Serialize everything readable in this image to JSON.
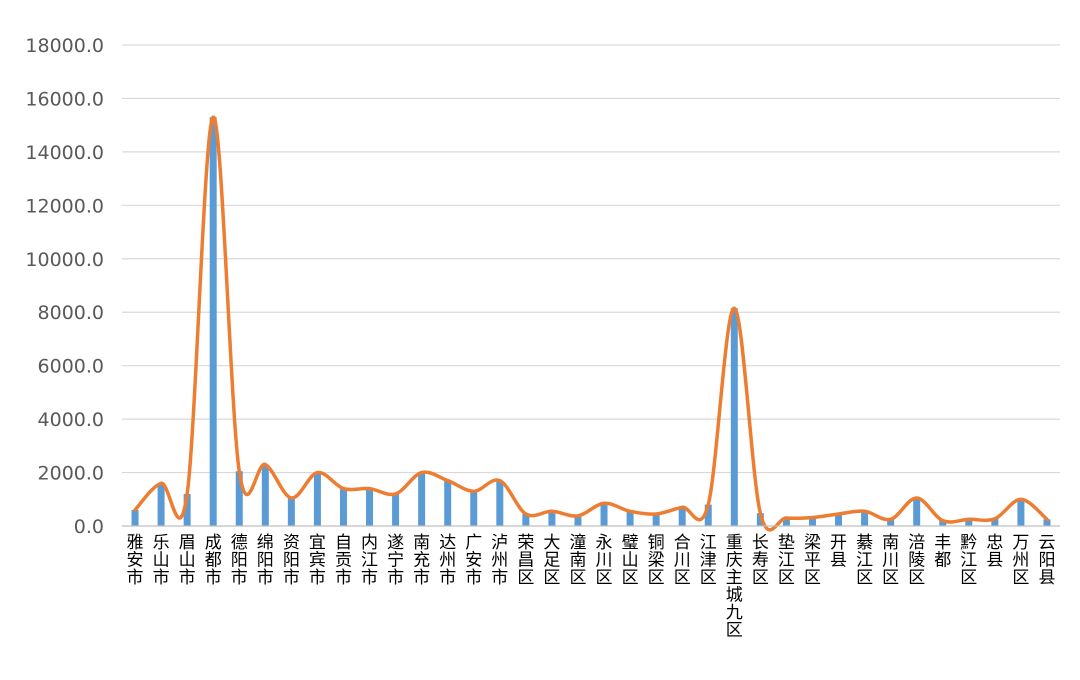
{
  "chart_data": {
    "type": "bar",
    "categories": [
      "雅安市",
      "乐山市",
      "眉山市",
      "成都市",
      "德阳市",
      "绵阳市",
      "资阳市",
      "宜宾市",
      "自贡市",
      "内江市",
      "遂宁市",
      "南充市",
      "达州市",
      "广安市",
      "泸州市",
      "荣昌区",
      "大足区",
      "潼南区",
      "永川区",
      "璧山区",
      "铜梁区",
      "合川区",
      "江津区",
      "重庆主城九区",
      "长寿区",
      "垫江区",
      "梁平区",
      "开县",
      "綦江区",
      "南川区",
      "涪陵区",
      "丰都",
      "黔江区",
      "忠县",
      "万州区",
      "云阳县"
    ],
    "series": [
      {
        "values": [
          600,
          1600,
          1200,
          15300,
          2050,
          2300,
          1050,
          2000,
          1400,
          1400,
          1200,
          2000,
          1700,
          1300,
          1700,
          450,
          550,
          380,
          850,
          550,
          450,
          700,
          800,
          8150,
          480,
          300,
          320,
          450,
          550,
          250,
          1050,
          200,
          250,
          270,
          1000,
          250
        ],
        "color": "#5b9bd5"
      },
      {
        "values": [
          600,
          1600,
          1200,
          15300,
          2050,
          2300,
          1050,
          2000,
          1400,
          1400,
          1200,
          2000,
          1700,
          1300,
          1700,
          450,
          550,
          380,
          850,
          550,
          450,
          700,
          800,
          8150,
          480,
          300,
          320,
          450,
          550,
          250,
          1050,
          200,
          250,
          270,
          1000,
          250
        ],
        "color": "#ed7d31"
      }
    ],
    "y_ticks": [
      "0.0",
      "2000.0",
      "4000.0",
      "6000.0",
      "8000.0",
      "10000.0",
      "12000.0",
      "14000.0",
      "16000.0",
      "18000.0"
    ],
    "ylim": [
      0,
      18000
    ],
    "grid": true,
    "title": "",
    "xlabel": "",
    "ylabel": ""
  }
}
